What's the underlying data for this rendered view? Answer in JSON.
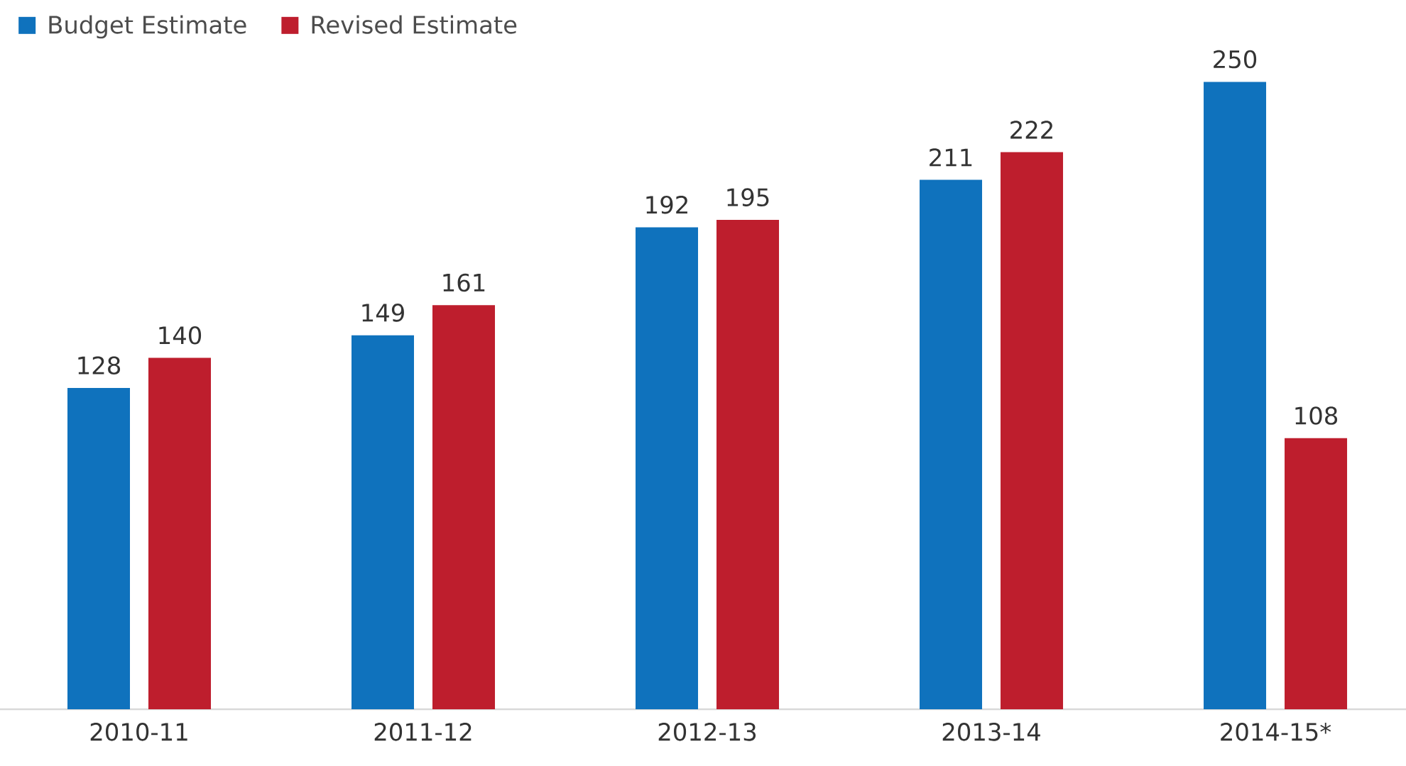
{
  "chart_data": {
    "type": "bar",
    "categories": [
      "2010-11",
      "2011-12",
      "2012-13",
      "2013-14",
      "2014-15*"
    ],
    "series": [
      {
        "name": "Budget Estimate",
        "color": "#0f72bd",
        "values": [
          128,
          149,
          192,
          211,
          250
        ]
      },
      {
        "name": "Revised Estimate",
        "color": "#be1e2d",
        "values": [
          140,
          161,
          195,
          222,
          108
        ]
      }
    ],
    "data_labels": true,
    "legend": "top left"
  }
}
